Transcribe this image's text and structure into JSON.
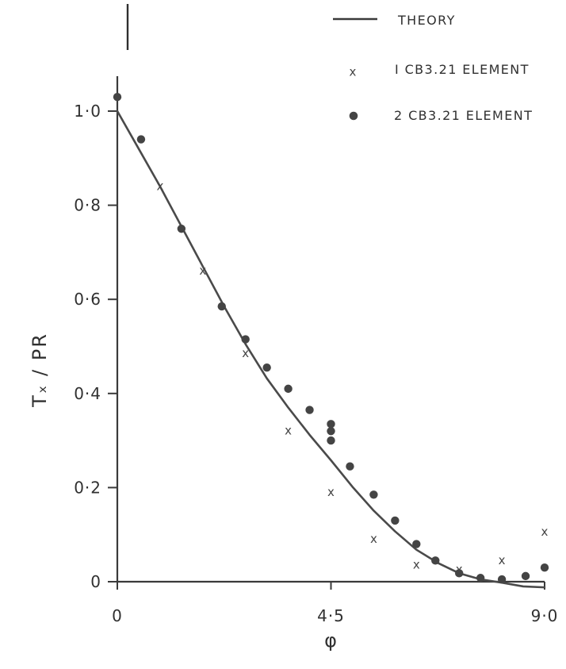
{
  "chart_data": {
    "type": "scatter",
    "x_ticks": [
      {
        "value": 0,
        "label": "0"
      },
      {
        "value": 4.5,
        "label": "4·5"
      },
      {
        "value": 9.0,
        "label": "9·0"
      }
    ],
    "y_ticks": [
      {
        "value": 0,
        "label": "0"
      },
      {
        "value": 0.2,
        "label": "0·2"
      },
      {
        "value": 0.4,
        "label": "0·4"
      },
      {
        "value": 0.6,
        "label": "0·6"
      },
      {
        "value": 0.8,
        "label": "0·8"
      },
      {
        "value": 1.0,
        "label": "1·0"
      }
    ],
    "xlabel": "φ",
    "ylabel": "Tₓ / PR",
    "xlim": [
      0,
      9.0
    ],
    "ylim": [
      0,
      1.0
    ],
    "grid": false,
    "legend_position": "top-right",
    "series": [
      {
        "name": "THEORY",
        "kind": "line",
        "x": [
          0,
          0.45,
          0.9,
          1.35,
          1.8,
          2.25,
          2.7,
          3.15,
          3.6,
          4.05,
          4.5,
          4.95,
          5.4,
          5.85,
          6.3,
          6.75,
          7.2,
          7.65,
          8.1,
          8.55,
          9.0
        ],
        "y": [
          1.0,
          0.92,
          0.84,
          0.755,
          0.67,
          0.585,
          0.505,
          0.432,
          0.37,
          0.312,
          0.258,
          0.202,
          0.151,
          0.107,
          0.068,
          0.04,
          0.018,
          0.005,
          -0.002,
          -0.01,
          -0.012
        ]
      },
      {
        "name": "I CB3.21 ELEMENT",
        "kind": "x",
        "x": [
          0.9,
          1.8,
          2.7,
          3.6,
          4.5,
          5.4,
          6.3,
          7.2,
          8.1,
          9.0
        ],
        "y": [
          0.84,
          0.66,
          0.485,
          0.32,
          0.19,
          0.09,
          0.035,
          0.025,
          0.045,
          0.105
        ]
      },
      {
        "name": "2 CB3.21 ELEMENT",
        "kind": "dot",
        "x": [
          0.0,
          0.5,
          1.35,
          2.2,
          2.7,
          3.15,
          3.6,
          4.05,
          4.5,
          4.5,
          4.5,
          4.9,
          5.4,
          5.85,
          6.3,
          6.7,
          7.2,
          7.65,
          8.1,
          8.6,
          9.0
        ],
        "y": [
          1.03,
          0.94,
          0.75,
          0.585,
          0.515,
          0.455,
          0.41,
          0.365,
          0.335,
          0.32,
          0.3,
          0.245,
          0.185,
          0.13,
          0.08,
          0.045,
          0.018,
          0.008,
          0.005,
          0.012,
          0.03
        ]
      }
    ]
  },
  "legend": {
    "theory_label": "THEORY",
    "one_element_label": "I CB3.21 ELEMENT",
    "two_element_label": "2 CB3.21 ELEMENT"
  },
  "colors": {
    "background": "#ffffff",
    "ink": "#3a3a3a",
    "marker": "#444444"
  }
}
